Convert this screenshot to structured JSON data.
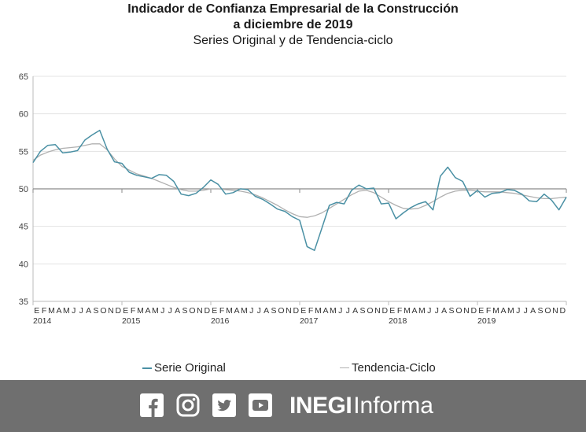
{
  "header": {
    "title_line1": "Indicador de Confianza Empresarial de la Construcción",
    "title_line2": "a diciembre de 2019",
    "subtitle": "Series Original y de Tendencia-ciclo"
  },
  "legend": {
    "original": "Serie Original",
    "trend": "Tendencia-Ciclo"
  },
  "footer": {
    "brand_bold": "INEGI",
    "brand_light": "Informa",
    "icons": [
      "facebook-icon",
      "instagram-icon",
      "twitter-icon",
      "youtube-icon"
    ],
    "background": "#6f6f6f"
  },
  "colors": {
    "original": "#4a90a4",
    "trend": "#b0b0b0"
  },
  "chart_data": {
    "type": "line",
    "ylim": [
      35,
      65
    ],
    "yticks": [
      35,
      40,
      45,
      50,
      55,
      60,
      65
    ],
    "reference_line": 50,
    "grid": true,
    "legend_position": "bottom",
    "month_labels": [
      "E",
      "F",
      "M",
      "A",
      "M",
      "J",
      "J",
      "A",
      "S",
      "O",
      "N",
      "D"
    ],
    "years": [
      "2014",
      "2015",
      "2016",
      "2017",
      "2018",
      "2019"
    ],
    "series": [
      {
        "name": "Serie Original",
        "values": [
          53.5,
          55.0,
          55.8,
          55.9,
          54.8,
          54.9,
          55.1,
          56.5,
          57.2,
          57.8,
          55.3,
          53.6,
          53.4,
          52.2,
          51.8,
          51.6,
          51.4,
          51.9,
          51.8,
          51.0,
          49.3,
          49.1,
          49.4,
          50.2,
          51.2,
          50.6,
          49.3,
          49.5,
          50.0,
          49.9,
          49.0,
          48.6,
          48.0,
          47.3,
          47.0,
          46.3,
          45.8,
          42.3,
          41.8,
          44.8,
          47.8,
          48.2,
          48.0,
          49.8,
          50.5,
          50.0,
          50.1,
          48.0,
          48.1,
          46.0,
          46.8,
          47.5,
          48.0,
          48.3,
          47.2,
          51.7,
          52.9,
          51.5,
          51.0,
          49.0,
          49.8,
          48.9,
          49.4,
          49.5,
          49.9,
          49.8,
          49.3,
          48.4,
          48.3,
          49.3,
          48.5,
          47.2,
          48.9
        ]
      },
      {
        "name": "Tendencia-Ciclo",
        "values": [
          53.8,
          54.5,
          54.9,
          55.2,
          55.4,
          55.5,
          55.6,
          55.8,
          56.0,
          56.0,
          55.2,
          54.0,
          53.0,
          52.5,
          52.0,
          51.7,
          51.4,
          51.0,
          50.6,
          50.2,
          49.9,
          49.7,
          49.7,
          49.8,
          50.0,
          50.0,
          49.9,
          49.8,
          49.7,
          49.5,
          49.2,
          48.8,
          48.3,
          47.8,
          47.2,
          46.7,
          46.3,
          46.2,
          46.4,
          46.8,
          47.4,
          48.0,
          48.6,
          49.2,
          49.7,
          49.8,
          49.5,
          48.9,
          48.3,
          47.8,
          47.4,
          47.3,
          47.4,
          47.8,
          48.3,
          48.9,
          49.4,
          49.7,
          49.8,
          49.8,
          49.7,
          49.6,
          49.6,
          49.6,
          49.5,
          49.4,
          49.2,
          49.0,
          48.8,
          48.7,
          48.7,
          48.8,
          48.9
        ]
      }
    ]
  }
}
